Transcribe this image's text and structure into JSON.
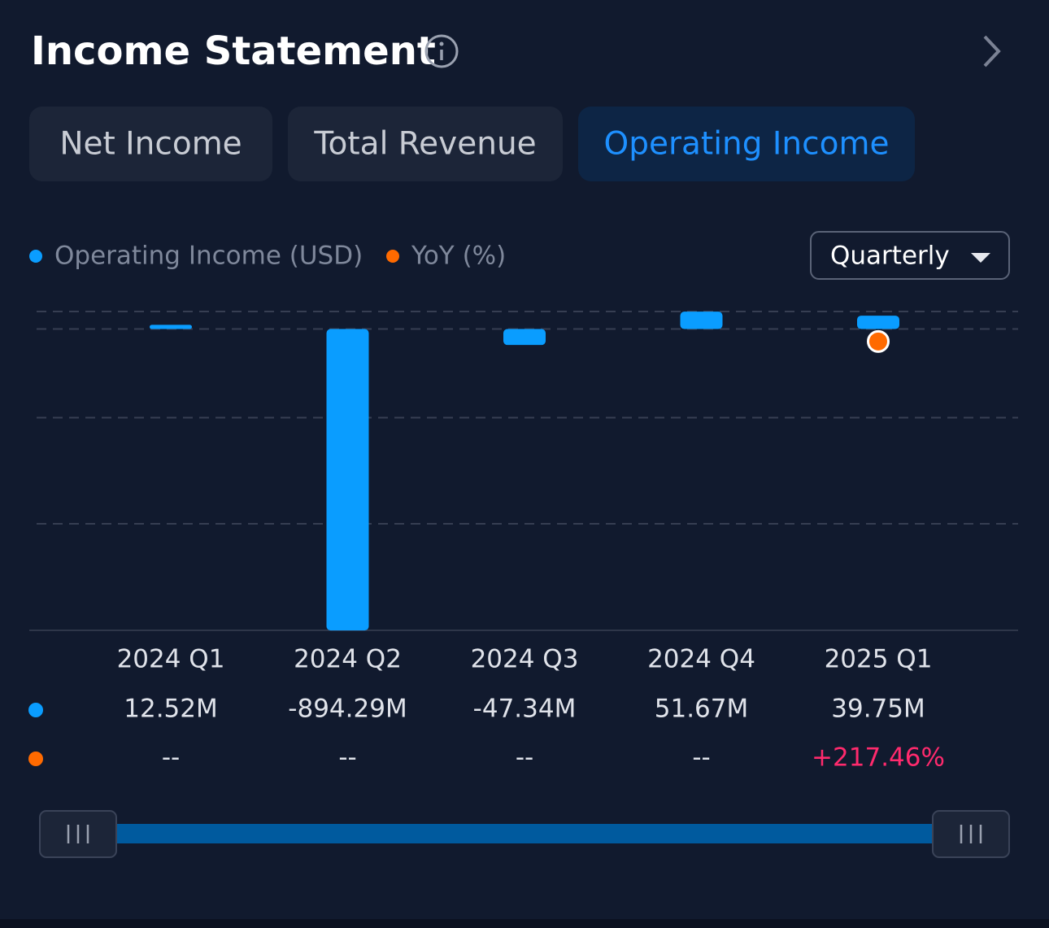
{
  "header": {
    "title": "Income Statement"
  },
  "tabs": [
    "Net Income",
    "Total Revenue",
    "Operating Income"
  ],
  "active_tab": 2,
  "period": "Quarterly",
  "chart_data": {
    "type": "bar",
    "categories": [
      "2024 Q1",
      "2024 Q2",
      "2024 Q3",
      "2024 Q4",
      "2025 Q1"
    ],
    "series": [
      {
        "name": "Operating Income (USD)",
        "color": "#0a9dff",
        "values": [
          12.52,
          -894.29,
          -47.34,
          51.67,
          39.75
        ],
        "value_labels": [
          "12.52M",
          "-894.29M",
          "-47.34M",
          "51.67M",
          "39.75M"
        ]
      },
      {
        "name": "YoY (%)",
        "color": "#ff6a00",
        "axis": "y2",
        "label_color": "#ff2a6d",
        "values": [
          null,
          null,
          null,
          null,
          217.46
        ],
        "value_labels": [
          "--",
          "--",
          "--",
          "--",
          "+217.46%"
        ]
      }
    ],
    "ylim": [
      -894,
      52
    ],
    "yticks": [
      52,
      0,
      -263,
      -578,
      -894
    ],
    "y2lim": [
      0,
      240
    ],
    "grid": true
  }
}
